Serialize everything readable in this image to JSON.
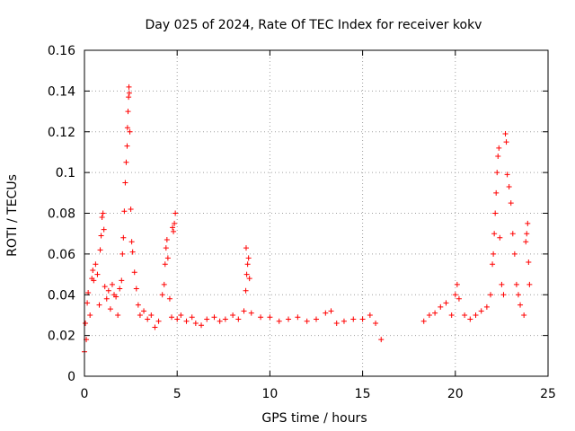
{
  "chart_data": {
    "type": "scatter",
    "title": "Day 025 of 2024, Rate Of TEC Index for receiver kokv",
    "xlabel": "GPS time / hours",
    "ylabel": "ROTI / TECUs",
    "xlim": [
      0,
      25
    ],
    "ylim": [
      0,
      0.16
    ],
    "xticks": [
      0,
      5,
      10,
      15,
      20,
      25
    ],
    "xtick_labels": [
      "0",
      "5",
      "10",
      "15",
      "20",
      "25"
    ],
    "yticks": [
      0,
      0.02,
      0.04,
      0.06,
      0.08,
      0.1,
      0.12,
      0.14,
      0.16
    ],
    "ytick_labels": [
      "0",
      "0.02",
      "0.04",
      "0.06",
      "0.08",
      "0.1",
      "0.12",
      "0.14",
      "0.16"
    ],
    "grid": true,
    "marker": "+",
    "color": "#ff0000",
    "series": [
      {
        "name": "ROTI",
        "points": [
          [
            0.0,
            0.012
          ],
          [
            0.05,
            0.026
          ],
          [
            0.1,
            0.018
          ],
          [
            0.15,
            0.036
          ],
          [
            0.2,
            0.041
          ],
          [
            0.3,
            0.03
          ],
          [
            0.4,
            0.048
          ],
          [
            0.45,
            0.052
          ],
          [
            0.5,
            0.047
          ],
          [
            0.6,
            0.055
          ],
          [
            0.7,
            0.05
          ],
          [
            0.8,
            0.035
          ],
          [
            0.85,
            0.062
          ],
          [
            0.9,
            0.069
          ],
          [
            0.95,
            0.078
          ],
          [
            1.0,
            0.08
          ],
          [
            1.05,
            0.072
          ],
          [
            1.1,
            0.044
          ],
          [
            1.2,
            0.038
          ],
          [
            1.3,
            0.042
          ],
          [
            1.4,
            0.033
          ],
          [
            1.5,
            0.045
          ],
          [
            1.6,
            0.04
          ],
          [
            1.7,
            0.039
          ],
          [
            1.8,
            0.03
          ],
          [
            1.9,
            0.043
          ],
          [
            2.0,
            0.047
          ],
          [
            2.05,
            0.06
          ],
          [
            2.1,
            0.068
          ],
          [
            2.15,
            0.081
          ],
          [
            2.2,
            0.095
          ],
          [
            2.25,
            0.105
          ],
          [
            2.3,
            0.113
          ],
          [
            2.32,
            0.122
          ],
          [
            2.35,
            0.13
          ],
          [
            2.38,
            0.137
          ],
          [
            2.4,
            0.142
          ],
          [
            2.42,
            0.139
          ],
          [
            2.45,
            0.12
          ],
          [
            2.5,
            0.082
          ],
          [
            2.55,
            0.066
          ],
          [
            2.6,
            0.061
          ],
          [
            2.7,
            0.051
          ],
          [
            2.8,
            0.043
          ],
          [
            2.9,
            0.035
          ],
          [
            3.0,
            0.03
          ],
          [
            3.2,
            0.032
          ],
          [
            3.4,
            0.028
          ],
          [
            3.6,
            0.03
          ],
          [
            3.8,
            0.024
          ],
          [
            4.0,
            0.027
          ],
          [
            4.2,
            0.04
          ],
          [
            4.3,
            0.045
          ],
          [
            4.35,
            0.055
          ],
          [
            4.4,
            0.063
          ],
          [
            4.45,
            0.067
          ],
          [
            4.5,
            0.058
          ],
          [
            4.6,
            0.038
          ],
          [
            4.7,
            0.029
          ],
          [
            4.75,
            0.073
          ],
          [
            4.8,
            0.071
          ],
          [
            4.85,
            0.075
          ],
          [
            4.9,
            0.08
          ],
          [
            5.0,
            0.028
          ],
          [
            5.2,
            0.03
          ],
          [
            5.5,
            0.027
          ],
          [
            5.8,
            0.029
          ],
          [
            6.0,
            0.026
          ],
          [
            6.3,
            0.025
          ],
          [
            6.6,
            0.028
          ],
          [
            7.0,
            0.029
          ],
          [
            7.3,
            0.027
          ],
          [
            7.6,
            0.028
          ],
          [
            8.0,
            0.03
          ],
          [
            8.3,
            0.028
          ],
          [
            8.6,
            0.032
          ],
          [
            8.7,
            0.042
          ],
          [
            8.75,
            0.05
          ],
          [
            8.8,
            0.055
          ],
          [
            8.85,
            0.058
          ],
          [
            8.9,
            0.048
          ],
          [
            8.72,
            0.063
          ],
          [
            9.0,
            0.031
          ],
          [
            9.5,
            0.029
          ],
          [
            10.0,
            0.029
          ],
          [
            10.5,
            0.027
          ],
          [
            11.0,
            0.028
          ],
          [
            11.5,
            0.029
          ],
          [
            12.0,
            0.027
          ],
          [
            12.5,
            0.028
          ],
          [
            13.0,
            0.031
          ],
          [
            13.3,
            0.032
          ],
          [
            13.6,
            0.026
          ],
          [
            14.0,
            0.027
          ],
          [
            14.5,
            0.028
          ],
          [
            15.0,
            0.028
          ],
          [
            15.4,
            0.03
          ],
          [
            15.7,
            0.026
          ],
          [
            16.0,
            0.018
          ],
          [
            18.3,
            0.027
          ],
          [
            18.6,
            0.03
          ],
          [
            18.9,
            0.031
          ],
          [
            19.2,
            0.034
          ],
          [
            19.5,
            0.036
          ],
          [
            19.8,
            0.03
          ],
          [
            20.0,
            0.04
          ],
          [
            20.1,
            0.045
          ],
          [
            20.2,
            0.038
          ],
          [
            20.5,
            0.03
          ],
          [
            20.8,
            0.028
          ],
          [
            21.1,
            0.03
          ],
          [
            21.4,
            0.032
          ],
          [
            21.7,
            0.034
          ],
          [
            21.9,
            0.04
          ],
          [
            22.0,
            0.055
          ],
          [
            22.05,
            0.06
          ],
          [
            22.1,
            0.07
          ],
          [
            22.15,
            0.08
          ],
          [
            22.2,
            0.09
          ],
          [
            22.25,
            0.1
          ],
          [
            22.3,
            0.108
          ],
          [
            22.35,
            0.112
          ],
          [
            22.4,
            0.068
          ],
          [
            22.5,
            0.045
          ],
          [
            22.6,
            0.04
          ],
          [
            22.7,
            0.119
          ],
          [
            22.75,
            0.115
          ],
          [
            22.8,
            0.099
          ],
          [
            22.9,
            0.093
          ],
          [
            23.0,
            0.085
          ],
          [
            23.1,
            0.07
          ],
          [
            23.2,
            0.06
          ],
          [
            23.3,
            0.045
          ],
          [
            23.4,
            0.04
          ],
          [
            23.5,
            0.035
          ],
          [
            23.7,
            0.03
          ],
          [
            23.8,
            0.066
          ],
          [
            23.85,
            0.07
          ],
          [
            23.9,
            0.075
          ],
          [
            23.95,
            0.056
          ],
          [
            24.0,
            0.045
          ]
        ]
      }
    ]
  }
}
